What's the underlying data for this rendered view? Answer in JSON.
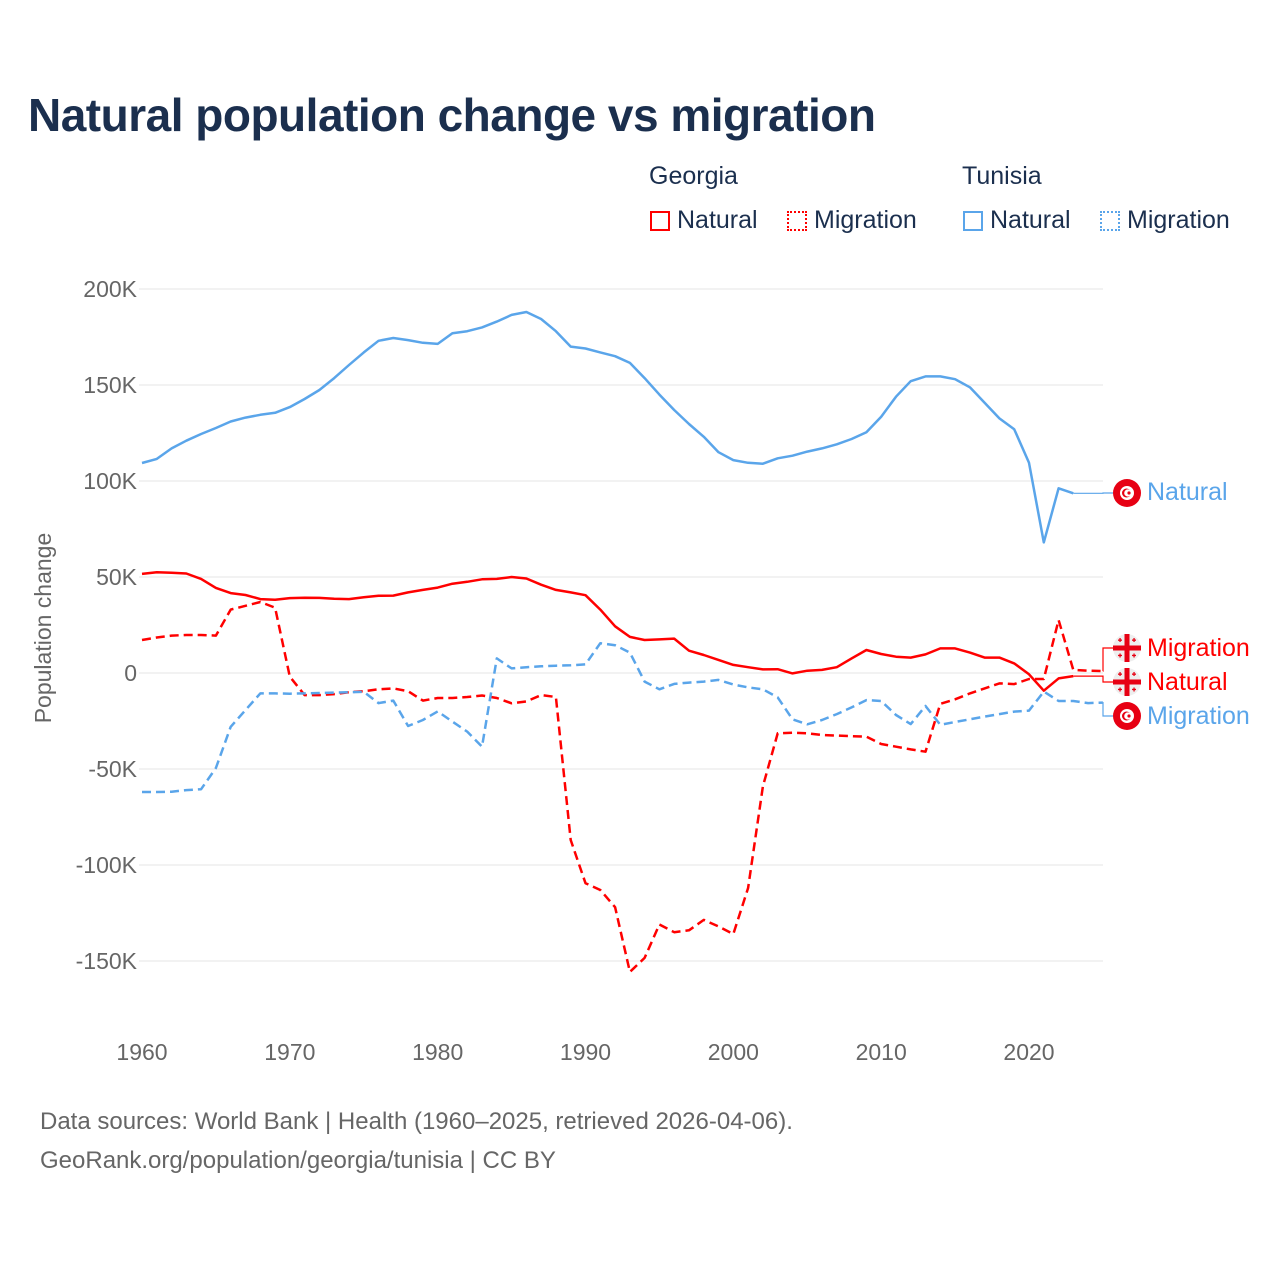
{
  "title": "Natural population change vs migration",
  "legend": {
    "groups": [
      {
        "name": "Georgia",
        "items": [
          {
            "label": "Natural",
            "style": "solid",
            "color": "#ff0000"
          },
          {
            "label": "Migration",
            "style": "dotted",
            "color": "#ff0000"
          }
        ]
      },
      {
        "name": "Tunisia",
        "items": [
          {
            "label": "Natural",
            "style": "solid",
            "color": "#5aa5ea"
          },
          {
            "label": "Migration",
            "style": "dotted",
            "color": "#5aa5ea"
          }
        ]
      }
    ]
  },
  "end_labels": [
    {
      "label": "Natural",
      "country": "Tunisia",
      "flag_icon": "tunisia-flag-icon"
    },
    {
      "label": "Migration",
      "country": "Georgia",
      "flag_icon": "georgia-flag-icon"
    },
    {
      "label": "Natural",
      "country": "Georgia",
      "flag_icon": "georgia-flag-icon"
    },
    {
      "label": "Migration",
      "country": "Tunisia",
      "flag_icon": "tunisia-flag-icon"
    }
  ],
  "footer": {
    "line1": "Data sources: World Bank | Health (1960–2025, retrieved 2026-04-06).",
    "line2": "GeoRank.org/population/georgia/tunisia | CC BY"
  },
  "chart_data": {
    "type": "line",
    "title": "Natural population change vs migration",
    "xlabel": "",
    "ylabel": "Population change",
    "xlim": [
      1960,
      2025
    ],
    "ylim": [
      -175000,
      200000
    ],
    "grid": true,
    "legend_position": "top-right",
    "x_ticks": [
      1960,
      1970,
      1980,
      1990,
      2000,
      2010,
      2020
    ],
    "x_tick_labels": [
      "1960",
      "1970",
      "1980",
      "1990",
      "2000",
      "2010",
      "2020"
    ],
    "y_ticks": [
      200000,
      150000,
      100000,
      50000,
      0,
      -50000,
      -100000,
      -150000
    ],
    "y_tick_labels": [
      "200K",
      "150K",
      "100K",
      "50K",
      "0",
      "-50K",
      "-100K",
      "-150K"
    ],
    "start_year": 1960,
    "series": [
      {
        "name": "Tunisia Natural",
        "country": "Tunisia",
        "kind": "Natural",
        "color": "#5aa5ea",
        "dash": false,
        "values_k": [
          109.4,
          111.5,
          117,
          121,
          124.5,
          127.6,
          131,
          133,
          134.5,
          135.5,
          138.5,
          142.7,
          147.4,
          153.6,
          160.4,
          167,
          173,
          174.5,
          173.4,
          172,
          171.4,
          177,
          178,
          180,
          183,
          186.5,
          188,
          184.4,
          178,
          170,
          169,
          167,
          165,
          161.5,
          153.6,
          145,
          137,
          129.7,
          123,
          115,
          110.9,
          109.5,
          109,
          111.8,
          113.2,
          115.3,
          117,
          119.1,
          121.9,
          125.4,
          133.5,
          143.9,
          152,
          154.5,
          154.5,
          153,
          148.8,
          140.8,
          132.6,
          127,
          109.5,
          68,
          96.2,
          93.6
        ]
      },
      {
        "name": "Georgia Migration",
        "country": "Georgia",
        "kind": "Migration",
        "color": "#ff0000",
        "dash": true,
        "values_k": [
          17.2,
          18.5,
          19.5,
          19.8,
          19.8,
          19.5,
          33,
          35,
          37,
          34,
          -1.9,
          -11.5,
          -11.5,
          -11,
          -10,
          -9.5,
          -8.5,
          -8,
          -9.5,
          -14.4,
          -13,
          -13,
          -12.5,
          -11.7,
          -13,
          -15.8,
          -14.8,
          -11.5,
          -12.5,
          -87,
          -109.5,
          -113,
          -122,
          -155.7,
          -148.4,
          -131,
          -135,
          -134,
          -128.6,
          -132,
          -136,
          -112,
          -59,
          -31.4,
          -31.1,
          -31.4,
          -32.3,
          -32.6,
          -32.9,
          -33.2,
          -37,
          -38.4,
          -39.8,
          -41,
          -16.1,
          -13.7,
          -10.6,
          -8,
          -5.4,
          -5.8,
          -3.1,
          -3.1,
          27.6,
          1.6,
          1.2,
          1.0
        ]
      },
      {
        "name": "Georgia Natural",
        "country": "Georgia",
        "kind": "Natural",
        "color": "#ff0000",
        "dash": false,
        "values_k": [
          51.6,
          52.5,
          52.2,
          51.8,
          49,
          44.3,
          41.6,
          40.6,
          38.5,
          38.2,
          39,
          39.2,
          39.1,
          38.7,
          38.5,
          39.5,
          40.2,
          40.3,
          42,
          43.3,
          44.5,
          46.5,
          47.5,
          48.8,
          49,
          50,
          49.2,
          46,
          43.3,
          42,
          40.5,
          33,
          24.3,
          18.8,
          17.2,
          17.5,
          17.9,
          11.6,
          9.4,
          6.8,
          4.2,
          3,
          1.9,
          2,
          -0.2,
          1.2,
          1.6,
          3,
          7.6,
          12,
          9.9,
          8.5,
          8,
          9.7,
          12.8,
          12.8,
          10.6,
          8,
          8,
          5,
          -0.7,
          -9.2,
          -2.8,
          -1.6
        ]
      },
      {
        "name": "Tunisia Migration",
        "country": "Tunisia",
        "kind": "Migration",
        "color": "#5aa5ea",
        "dash": true,
        "values_k": [
          -62,
          -62,
          -61.8,
          -61,
          -60.5,
          -49.5,
          -28,
          -19.3,
          -10.6,
          -10.6,
          -10.8,
          -10.6,
          -10.4,
          -10.2,
          -10,
          -9.8,
          -15.7,
          -14.4,
          -27.6,
          -24.5,
          -20,
          -25.3,
          -30.5,
          -38.4,
          7.6,
          2.4,
          3,
          3.5,
          3.8,
          4,
          4.5,
          15.5,
          14.5,
          10.6,
          -4.5,
          -8.5,
          -5.7,
          -5,
          -4.5,
          -3.6,
          -6,
          -7.5,
          -8.5,
          -12.7,
          -24.1,
          -26.7,
          -24.5,
          -21.4,
          -17.9,
          -14.1,
          -14.6,
          -21.9,
          -26.6,
          -17.2,
          -27,
          -25.5,
          -24.1,
          -22.7,
          -21.4,
          -20.1,
          -19.6,
          -9.7,
          -14.6,
          -14.6,
          -15.7,
          -15.4
        ]
      }
    ]
  }
}
